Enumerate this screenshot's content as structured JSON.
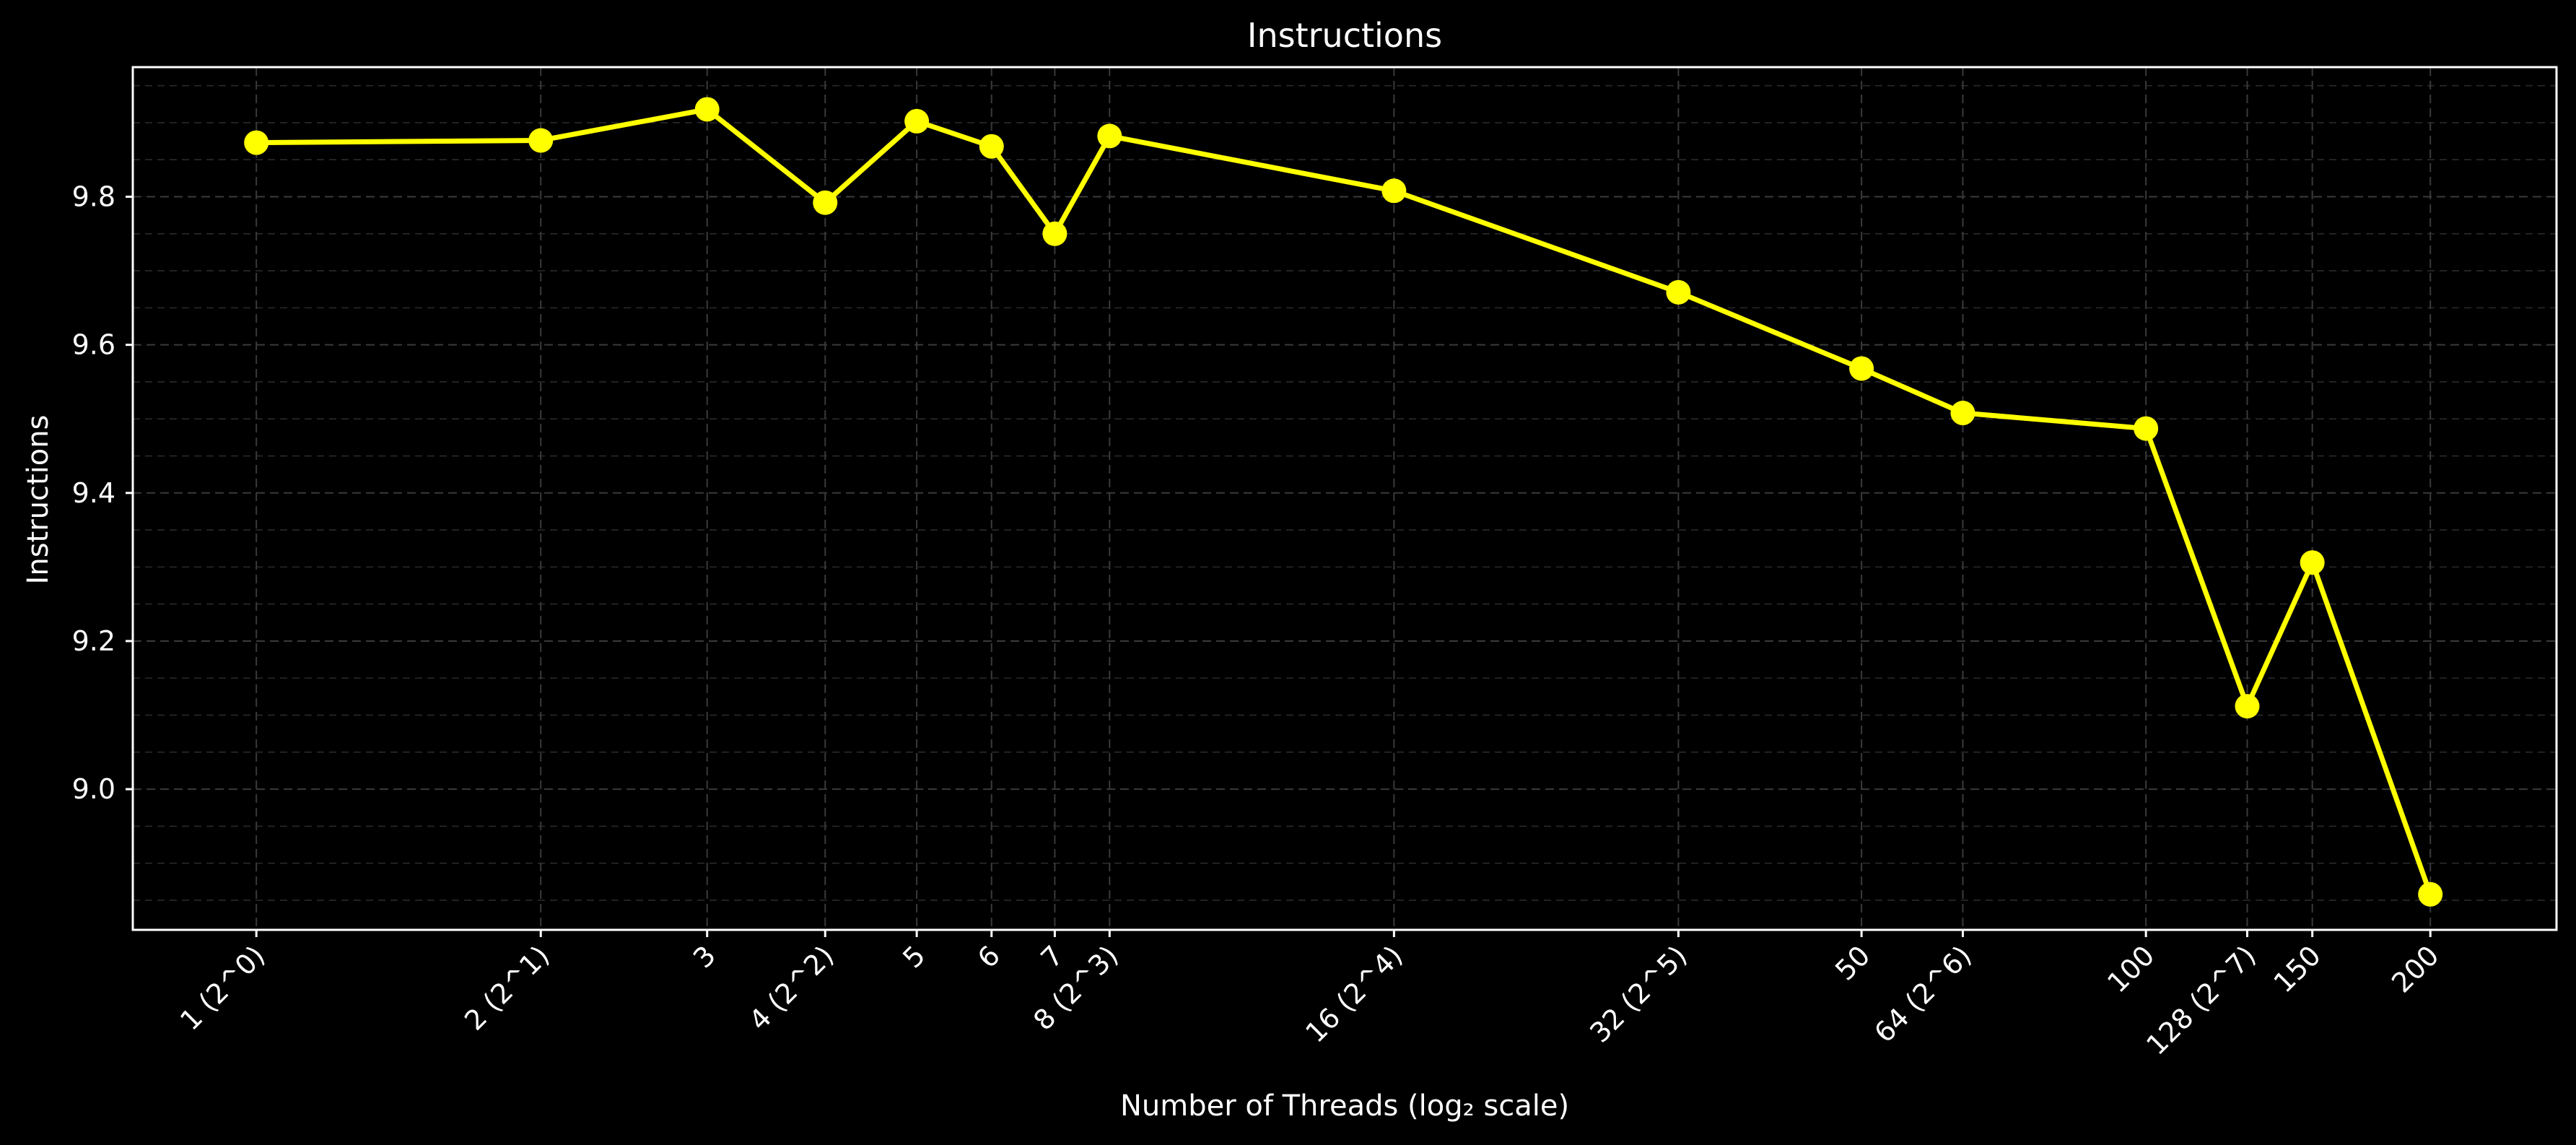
{
  "chart_data": {
    "type": "line",
    "title": "Instructions",
    "xlabel": "Number of Threads (log₂ scale)",
    "ylabel": "Instructions",
    "x_scale": "log2",
    "xlim": [
      0.74,
      272
    ],
    "ylim": [
      8.81,
      9.975
    ],
    "yticks": [
      9.0,
      9.2,
      9.4,
      9.6,
      9.8
    ],
    "ytick_labels": [
      "9.0",
      "9.2",
      "9.4",
      "9.6",
      "9.8"
    ],
    "xticks": [
      1,
      2,
      3,
      4,
      5,
      6,
      7,
      8,
      16,
      32,
      50,
      64,
      100,
      128,
      150,
      200
    ],
    "xtick_labels": [
      "1 (2^0)",
      "2 (2^1)",
      "3",
      "4 (2^2)",
      "5",
      "6",
      "7",
      "8 (2^3)",
      "16 (2^4)",
      "32 (2^5)",
      "50",
      "64 (2^6)",
      "100",
      "128 (2^7)",
      "150",
      "200"
    ],
    "grid": true,
    "series": [
      {
        "color": "#ffff00",
        "x": [
          1,
          2,
          3,
          4,
          5,
          6,
          7,
          8,
          16,
          32,
          50,
          64,
          100,
          128,
          150,
          200
        ],
        "y": [
          9.873,
          9.876,
          9.918,
          9.792,
          9.902,
          9.868,
          9.75,
          9.882,
          9.808,
          9.671,
          9.568,
          9.508,
          9.487,
          9.112,
          9.306,
          8.858
        ]
      }
    ]
  },
  "colors": {
    "background": "#000000",
    "line": "#ffff00",
    "frame": "#ffffff",
    "text": "#ffffff"
  }
}
